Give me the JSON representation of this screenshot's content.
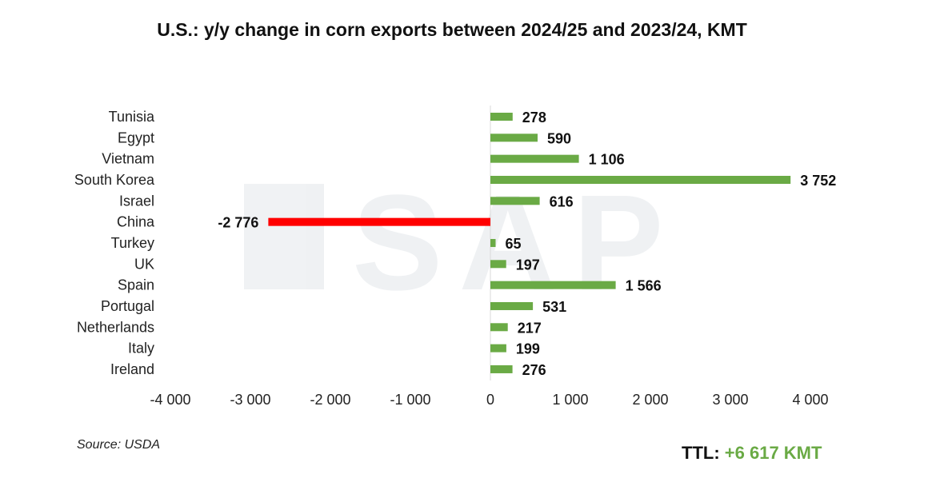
{
  "chart_data": {
    "type": "bar",
    "orientation": "horizontal",
    "title": "U.S.: y/y change in corn exports between 2024/25 and 2023/24, KMT",
    "categories": [
      "Tunisia",
      "Egypt",
      "Vietnam",
      "South Korea",
      "Israel",
      "China",
      "Turkey",
      "UK",
      "Spain",
      "Portugal",
      "Netherlands",
      "Italy",
      "Ireland"
    ],
    "values": [
      278,
      590,
      1106,
      3752,
      616,
      -2776,
      65,
      197,
      1566,
      531,
      217,
      199,
      276
    ],
    "value_labels": [
      "278",
      "590",
      "1 106",
      "3 752",
      "616",
      "-2 776",
      "65",
      "197",
      "1 566",
      "531",
      "217",
      "199",
      "276"
    ],
    "xlim": [
      -4000,
      4000
    ],
    "xticks": [
      -4000,
      -3000,
      -2000,
      -1000,
      0,
      1000,
      2000,
      3000,
      4000
    ],
    "xtick_labels": [
      "-4 000",
      "-3 000",
      "-2 000",
      "-1 000",
      "0",
      "1 000",
      "2 000",
      "3 000",
      "4 000"
    ],
    "colors": {
      "positive": "#6aaa45",
      "negative": "#ff0000"
    },
    "grid": false,
    "xlabel": "",
    "ylabel": ""
  },
  "source": "Source: USDA",
  "total": {
    "label": "TTL:",
    "value": "+6 617 KMT"
  },
  "watermark": "ASAP"
}
